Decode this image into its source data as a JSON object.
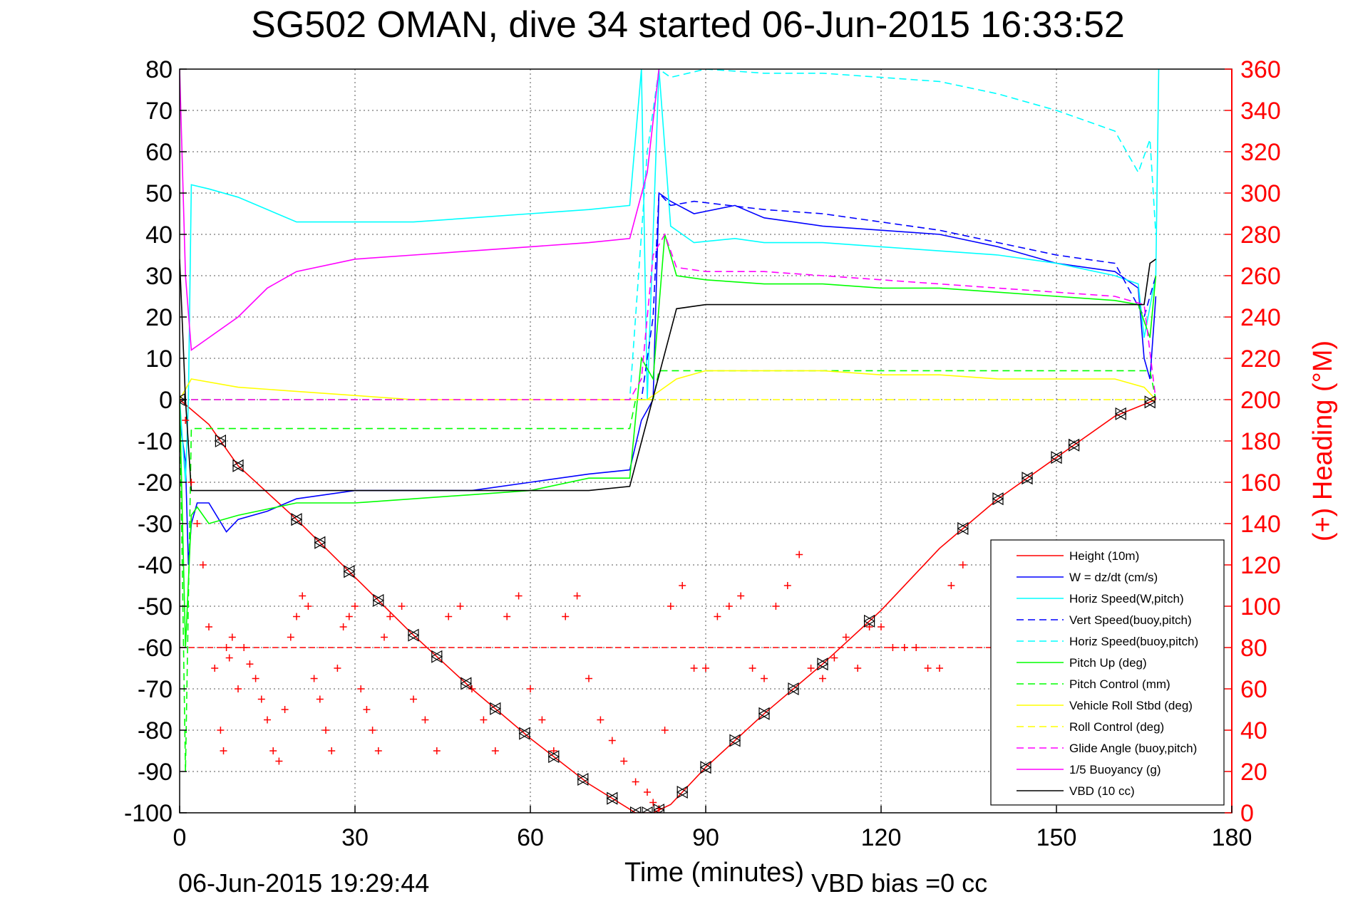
{
  "chart_data": {
    "type": "line",
    "title": "SG502 OMAN, dive 34 started 06-Jun-2015 16:33:52",
    "xlabel": "Time (minutes)",
    "ylabel_right": "(+) Heading (°M)",
    "footer_left": "06-Jun-2015 19:29:44",
    "footer_right": "VBD bias =0 cc",
    "xlim": [
      0,
      180
    ],
    "ylim": [
      -100,
      80
    ],
    "ylim_right": [
      0,
      360
    ],
    "xticks": [
      0,
      30,
      60,
      90,
      120,
      150,
      180
    ],
    "yticks": [
      80,
      70,
      60,
      50,
      40,
      30,
      20,
      10,
      0,
      -10,
      -20,
      -30,
      -40,
      -50,
      -60,
      -70,
      -80,
      -90,
      -100
    ],
    "yticks_right": [
      360,
      340,
      320,
      300,
      280,
      260,
      240,
      220,
      200,
      180,
      160,
      140,
      120,
      100,
      80,
      60,
      40,
      20,
      0
    ],
    "grid": true,
    "legend_position": "lower-right",
    "colors": {
      "red": "#ff0000",
      "blue": "#0000ff",
      "cyan": "#00ffff",
      "green": "#00ff00",
      "yellow": "#ffff00",
      "magenta": "#ff00ff",
      "black": "#000000"
    },
    "series": [
      {
        "name": "Height (10m)",
        "color": "#ff0000",
        "style": "solid",
        "x": [
          0,
          5,
          10,
          20,
          30,
          40,
          50,
          60,
          70,
          78,
          81,
          84,
          90,
          100,
          110,
          120,
          130,
          140,
          150,
          160,
          167
        ],
        "y": [
          0,
          -6,
          -16,
          -29,
          -43,
          -57,
          -70,
          -82,
          -93,
          -100,
          -100,
          -98,
          -89,
          -76,
          -64,
          -51,
          -36,
          -24,
          -14,
          -4,
          0
        ]
      },
      {
        "name": "W = dz/dt (cm/s)",
        "color": "#0000ff",
        "style": "solid",
        "x": [
          0,
          1,
          1.5,
          2,
          3,
          5,
          8,
          10,
          15,
          20,
          30,
          40,
          50,
          60,
          70,
          77,
          79,
          81,
          82,
          84,
          88,
          95,
          100,
          110,
          120,
          130,
          140,
          150,
          160,
          164,
          165,
          166,
          167
        ],
        "y": [
          -5,
          -15,
          -40,
          -30,
          -25,
          -25,
          -32,
          -29,
          -27,
          -24,
          -22,
          -22,
          -22,
          -20,
          -18,
          -17,
          -5,
          0,
          50,
          48,
          45,
          47,
          44,
          42,
          41,
          40,
          37,
          33,
          31,
          27,
          10,
          5,
          25
        ]
      },
      {
        "name": "Horiz Speed(W,pitch)",
        "color": "#00ffff",
        "style": "solid",
        "x": [
          0,
          1,
          1.5,
          2,
          5,
          10,
          20,
          30,
          40,
          50,
          60,
          70,
          77,
          79,
          80,
          82,
          84,
          88,
          95,
          100,
          110,
          120,
          130,
          140,
          150,
          160,
          164,
          165,
          167,
          167.5
        ],
        "y": [
          0,
          -20,
          0,
          52,
          51,
          49,
          43,
          43,
          43,
          44,
          45,
          46,
          47,
          80,
          0,
          80,
          42,
          38,
          39,
          38,
          38,
          37,
          36,
          35,
          33,
          30,
          28,
          15,
          30,
          80
        ]
      },
      {
        "name": "Vert Speed(buoy,pitch)",
        "color": "#0000ff",
        "style": "dashed",
        "x": [
          0,
          77,
          79,
          81,
          82,
          84,
          88,
          100,
          110,
          120,
          130,
          140,
          150,
          160,
          165,
          167
        ],
        "y": [
          0,
          0,
          0,
          20,
          50,
          47,
          48,
          46,
          45,
          43,
          41,
          38,
          35,
          33,
          20,
          30
        ]
      },
      {
        "name": "Horiz Speed(buoy,pitch)",
        "color": "#00ffff",
        "style": "dashed",
        "x": [
          0,
          77,
          80,
          82,
          84,
          90,
          100,
          110,
          120,
          130,
          140,
          150,
          160,
          164,
          166,
          167
        ],
        "y": [
          0,
          0,
          60,
          80,
          78,
          80,
          79,
          79,
          78,
          77,
          74,
          70,
          65,
          55,
          63,
          40
        ]
      },
      {
        "name": "Pitch Up (deg)",
        "color": "#00ff00",
        "style": "solid",
        "x": [
          0,
          1,
          2,
          3,
          5,
          10,
          20,
          30,
          40,
          50,
          60,
          70,
          77,
          79,
          81,
          83,
          85,
          90,
          100,
          110,
          120,
          130,
          140,
          150,
          160,
          164,
          166,
          167
        ],
        "y": [
          0,
          -60,
          -28,
          -26,
          -30,
          -28,
          -25,
          -25,
          -24,
          -23,
          -22,
          -19,
          -19,
          10,
          5,
          40,
          30,
          29,
          28,
          28,
          27,
          27,
          26,
          25,
          24,
          23,
          15,
          30
        ]
      },
      {
        "name": "Pitch Control (mm)",
        "color": "#00ff00",
        "style": "dashed",
        "x": [
          0,
          1,
          2,
          3,
          77,
          78,
          81,
          82,
          83,
          166,
          167
        ],
        "y": [
          0,
          -90,
          -7,
          -7,
          -7,
          0,
          0,
          7,
          7,
          7,
          0
        ]
      },
      {
        "name": "Vehicle Roll Stbd (deg)",
        "color": "#ffff00",
        "style": "solid",
        "x": [
          0,
          2,
          10,
          20,
          30,
          40,
          50,
          60,
          70,
          77,
          80,
          85,
          90,
          100,
          110,
          120,
          130,
          140,
          150,
          160,
          165,
          167
        ],
        "y": [
          0,
          5,
          3,
          2,
          1,
          0,
          0,
          0,
          0,
          0,
          0,
          5,
          7,
          7,
          7,
          6,
          6,
          5,
          5,
          5,
          3,
          0
        ]
      },
      {
        "name": "Roll Control (deg)",
        "color": "#ffff00",
        "style": "dashed",
        "x": [
          0,
          2,
          5,
          10,
          20,
          40,
          60,
          77,
          82,
          90,
          110,
          130,
          150,
          167
        ],
        "y": [
          0,
          0,
          0,
          0,
          0,
          0,
          0,
          0,
          0,
          0,
          0,
          0,
          0,
          0
        ]
      },
      {
        "name": "Glide Angle (buoy,pitch)",
        "color": "#ff00ff",
        "style": "dashed",
        "x": [
          0,
          77,
          79,
          81,
          83,
          85,
          90,
          100,
          110,
          120,
          130,
          140,
          150,
          160,
          165,
          167
        ],
        "y": [
          0,
          0,
          5,
          35,
          40,
          32,
          31,
          31,
          30,
          29,
          28,
          27,
          26,
          25,
          23,
          0
        ]
      },
      {
        "name": "1/5 Buoyancy (g)",
        "color": "#ff00ff",
        "style": "solid",
        "x": [
          0,
          1,
          2,
          5,
          10,
          15,
          20,
          30,
          40,
          50,
          60,
          70,
          77,
          80,
          82
        ],
        "y": [
          80,
          30,
          12,
          15,
          20,
          27,
          31,
          34,
          35,
          36,
          37,
          38,
          39,
          55,
          80
        ]
      },
      {
        "name": "VBD (10 cc)",
        "color": "#000000",
        "style": "solid",
        "x": [
          0,
          1,
          2,
          10,
          30,
          50,
          70,
          77,
          85,
          90,
          120,
          150,
          165,
          166,
          167
        ],
        "y": [
          34,
          0,
          -22,
          -22,
          -22,
          -22,
          -22,
          -21,
          22,
          23,
          23,
          23,
          23,
          33,
          34
        ]
      }
    ],
    "reference_line": {
      "y_right": 80,
      "color": "#ff0000",
      "style": "dashed",
      "x": [
        0,
        167
      ]
    },
    "heading_points": {
      "color": "#ff0000",
      "marker": "+",
      "axis": "right",
      "x": [
        1,
        2,
        3,
        4,
        5,
        6,
        7,
        7.5,
        8,
        8.5,
        9,
        10,
        11,
        12,
        13,
        14,
        15,
        16,
        17,
        18,
        19,
        20,
        21,
        22,
        23,
        24,
        25,
        26,
        27,
        28,
        29,
        30,
        31,
        32,
        33,
        34,
        35,
        36,
        38,
        40,
        42,
        44,
        46,
        48,
        50,
        52,
        54,
        56,
        58,
        60,
        62,
        64,
        66,
        68,
        70,
        72,
        74,
        76,
        78,
        80,
        81,
        82,
        83,
        84,
        86,
        88,
        90,
        92,
        94,
        96,
        98,
        100,
        102,
        104,
        106,
        108,
        110,
        112,
        114,
        116,
        118,
        120,
        122,
        124,
        126,
        128,
        130,
        132,
        134
      ],
      "y": [
        190,
        160,
        140,
        120,
        90,
        70,
        40,
        30,
        80,
        75,
        85,
        60,
        80,
        72,
        65,
        55,
        45,
        30,
        25,
        50,
        85,
        95,
        105,
        100,
        65,
        55,
        40,
        30,
        70,
        90,
        95,
        100,
        60,
        50,
        40,
        30,
        85,
        95,
        100,
        55,
        45,
        30,
        95,
        100,
        60,
        45,
        30,
        95,
        105,
        60,
        45,
        30,
        95,
        105,
        65,
        45,
        35,
        25,
        15,
        10,
        5,
        2,
        40,
        100,
        110,
        70,
        70,
        95,
        100,
        105,
        70,
        65,
        100,
        110,
        125,
        70,
        65,
        75,
        85,
        70,
        90,
        90,
        80,
        80,
        80,
        70,
        70,
        110,
        120
      ]
    },
    "triangle_marker_times": [
      0,
      7,
      10,
      20,
      24,
      29,
      34,
      40,
      44,
      49,
      54,
      59,
      64,
      69,
      74,
      78,
      80,
      82,
      86,
      90,
      95,
      100,
      105,
      110,
      118,
      134,
      140,
      145,
      150,
      153,
      161,
      166
    ]
  }
}
